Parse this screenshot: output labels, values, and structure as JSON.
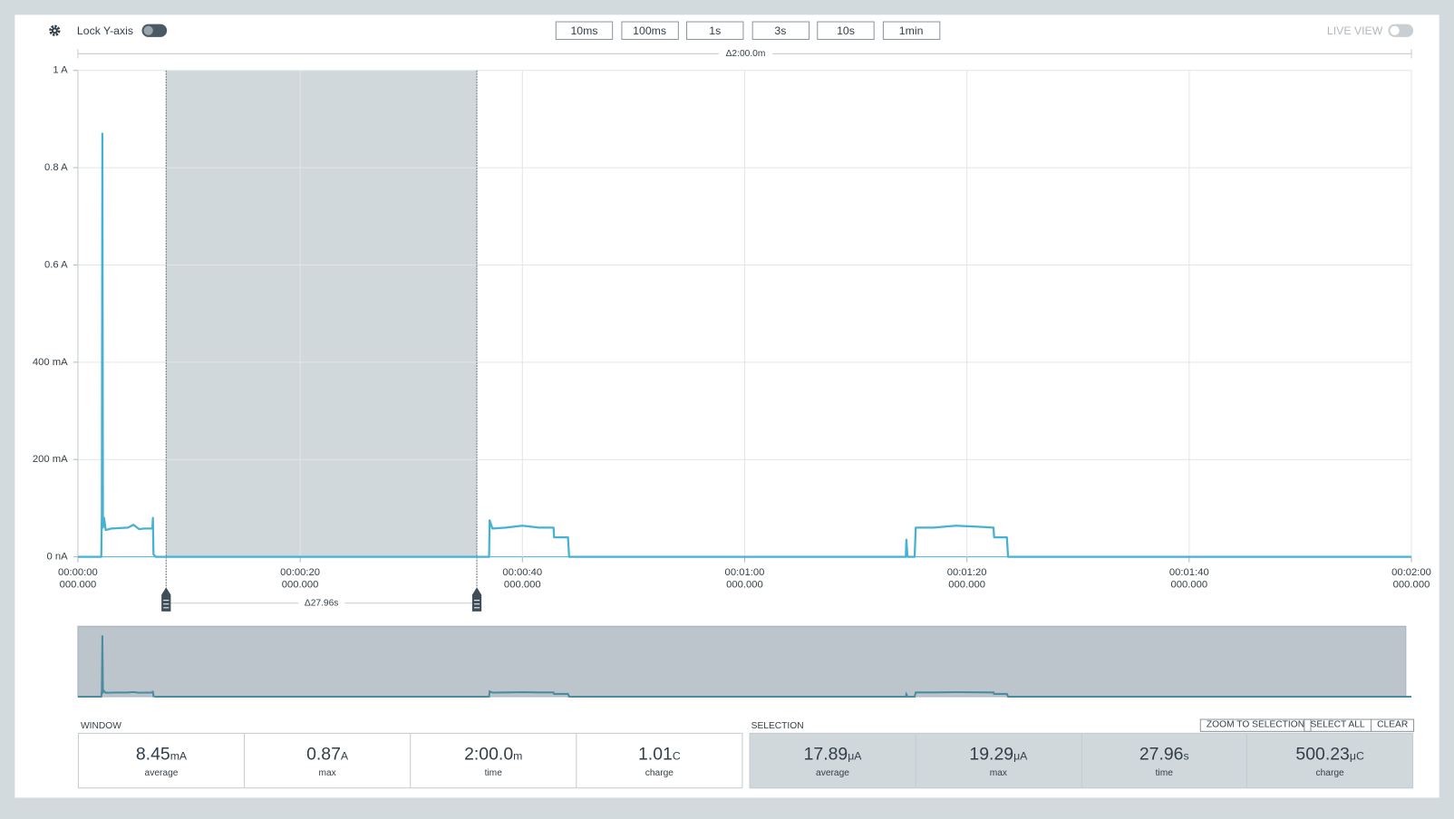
{
  "toolbar": {
    "lock_label": "Lock Y-axis",
    "windows": [
      "10ms",
      "100ms",
      "1s",
      "3s",
      "10s",
      "1min"
    ],
    "live_view": "LIVE VIEW"
  },
  "chart_data": {
    "type": "line",
    "window_delta": "Δ2:00.0m",
    "x": [
      0,
      2.1,
      2.15,
      2.2,
      2.25,
      2.35,
      2.5,
      3.0,
      4.5,
      5.0,
      5.5,
      6.0,
      6.7,
      6.75,
      6.8,
      7.0,
      37.0,
      37.05,
      37.3,
      38.5,
      40.0,
      41.5,
      42.8,
      42.85,
      44.1,
      44.2,
      74.5,
      74.55,
      74.65,
      75.3,
      75.4,
      77,
      79,
      81,
      82.4,
      82.45,
      83.6,
      83.7,
      120
    ],
    "series": [
      {
        "color": "#45b1d3",
        "values": [
          0,
          0,
          0.085,
          0.87,
          0.06,
          0.08,
          0.055,
          0.058,
          0.06,
          0.066,
          0.057,
          0.058,
          0.058,
          0.08,
          0.005,
          0,
          0,
          0.075,
          0.058,
          0.06,
          0.064,
          0.06,
          0.06,
          0.04,
          0.04,
          0,
          0,
          0.035,
          0,
          0,
          0.06,
          0.06,
          0.064,
          0.062,
          0.06,
          0.04,
          0.04,
          0,
          0
        ]
      }
    ],
    "xlim": [
      0,
      120
    ],
    "xticks": [
      {
        "value": 0,
        "label": "00:00:00\n000.000"
      },
      {
        "value": 20,
        "label": "00:00:20\n000.000"
      },
      {
        "value": 40,
        "label": "00:00:40\n000.000"
      },
      {
        "value": 60,
        "label": "00:01:00\n000.000"
      },
      {
        "value": 80,
        "label": "00:01:20\n000.000"
      },
      {
        "value": 100,
        "label": "00:01:40\n000.000"
      },
      {
        "value": 120,
        "label": "00:02:00\n000.000"
      }
    ],
    "ylim": [
      0,
      1
    ],
    "yticks": [
      {
        "value": 0,
        "label": "0 nA"
      },
      {
        "value": 0.2,
        "label": "200 mA"
      },
      {
        "value": 0.4,
        "label": "400 mA"
      },
      {
        "value": 0.6,
        "label": "0.6 A"
      },
      {
        "value": 0.8,
        "label": "0.8 A"
      },
      {
        "value": 1,
        "label": "1 A"
      }
    ],
    "grid": true,
    "selection": {
      "start": 7.94,
      "end": 35.9,
      "label": "Δ27.96s"
    }
  },
  "stats": {
    "window": {
      "title": "WINDOW",
      "items": [
        {
          "value": "8.45",
          "unit": "mA",
          "label": "average"
        },
        {
          "value": "0.87",
          "unit": "A",
          "label": "max"
        },
        {
          "value": "2:00.0",
          "unit": "m",
          "label": "time"
        },
        {
          "value": "1.01",
          "unit": "C",
          "label": "charge"
        }
      ]
    },
    "selection": {
      "title": "SELECTION",
      "buttons": [
        "ZOOM TO SELECTION",
        "SELECT ALL",
        "CLEAR"
      ],
      "items": [
        {
          "value": "17.89",
          "unit": "μA",
          "label": "average"
        },
        {
          "value": "19.29",
          "unit": "μA",
          "label": "max"
        },
        {
          "value": "27.96",
          "unit": "s",
          "label": "time"
        },
        {
          "value": "500.23",
          "unit": "μC",
          "label": "charge"
        }
      ]
    }
  }
}
